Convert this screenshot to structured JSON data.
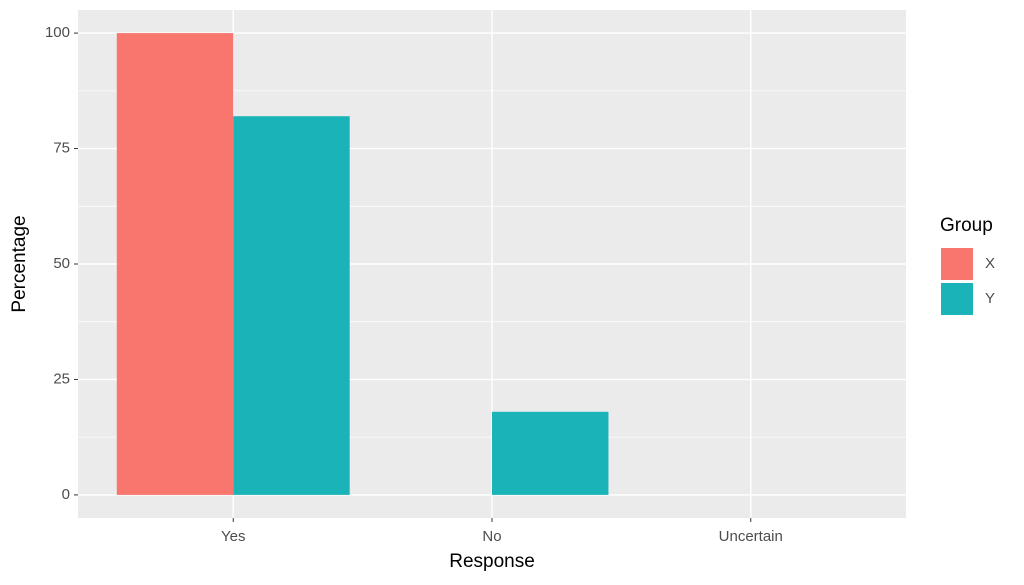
{
  "chart_data": {
    "type": "bar",
    "x_label": "Response",
    "y_label": "Percentage",
    "categories": [
      "Yes",
      "No",
      "Uncertain"
    ],
    "series": [
      {
        "name": "X",
        "color": "#f8766d",
        "values": [
          100,
          0,
          0
        ]
      },
      {
        "name": "Y",
        "color": "#19b3b8",
        "values": [
          82,
          18,
          0
        ]
      }
    ],
    "legend_title": "Group",
    "legend_position": "right",
    "ylim": [
      -5,
      105
    ],
    "yticks": [
      0,
      25,
      50,
      75,
      100
    ],
    "grid": true
  }
}
